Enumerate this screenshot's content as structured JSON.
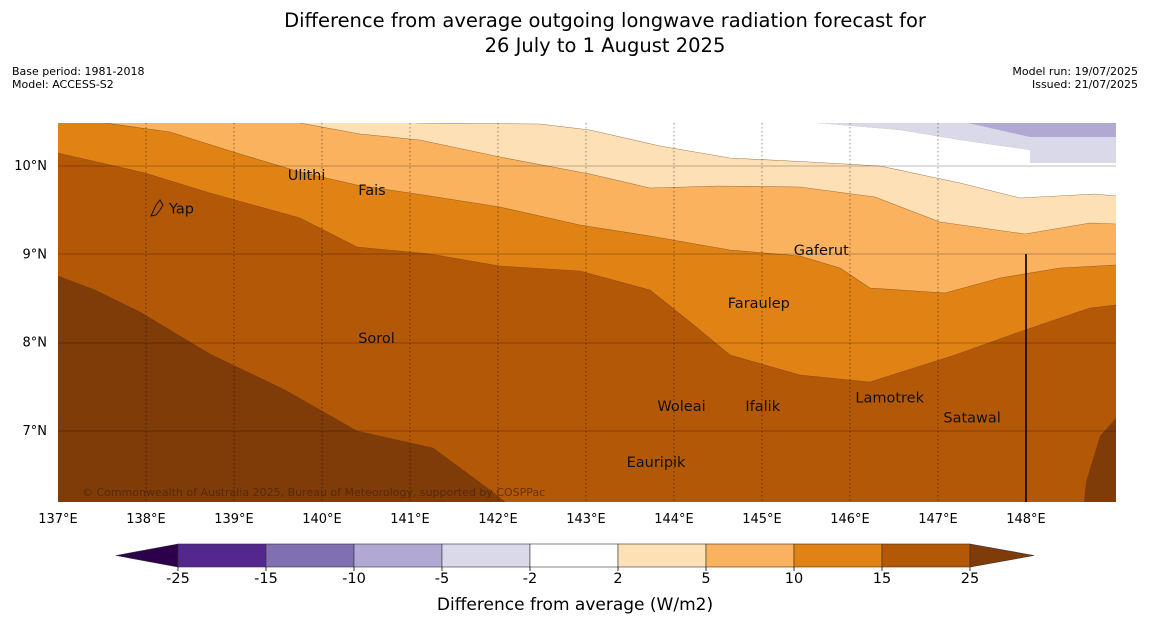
{
  "title_line1": "Difference from average outgoing longwave radiation forecast for",
  "title_line2": "26 July to 1 August 2025",
  "base_period": "Base period: 1981-2018",
  "model": "Model: ACCESS-S2",
  "model_run": "Model run: 19/07/2025",
  "issued": "Issued: 21/07/2025",
  "copyright": "© Commonwealth of Australia 2025, Bureau of Meteorology, supported by COSPPac",
  "map": {
    "lon_labels": [
      "137°E",
      "138°E",
      "139°E",
      "140°E",
      "141°E",
      "142°E",
      "143°E",
      "144°E",
      "145°E",
      "146°E",
      "147°E",
      "148°E"
    ],
    "lat_labels": [
      "10°N",
      "9°N",
      "8°N",
      "7°N"
    ],
    "places": [
      {
        "name": "Yap",
        "lon": 138.25,
        "lat": 9.52
      },
      {
        "name": "Ulithi",
        "lon": 139.6,
        "lat": 9.9
      },
      {
        "name": "Fais",
        "lon": 140.4,
        "lat": 9.73
      },
      {
        "name": "Gaferut",
        "lon": 145.35,
        "lat": 9.05
      },
      {
        "name": "Faraulep",
        "lon": 144.6,
        "lat": 8.45
      },
      {
        "name": "Sorol",
        "lon": 140.4,
        "lat": 8.05
      },
      {
        "name": "Lamotrek",
        "lon": 146.05,
        "lat": 7.38
      },
      {
        "name": "Woleai",
        "lon": 143.8,
        "lat": 7.28
      },
      {
        "name": "Ifalik",
        "lon": 144.8,
        "lat": 7.28
      },
      {
        "name": "Satawal",
        "lon": 147.05,
        "lat": 7.15
      },
      {
        "name": "Eauripik",
        "lon": 143.45,
        "lat": 6.65
      }
    ]
  },
  "colorbar": {
    "title": "Difference from average (W/m2)",
    "ticks": [
      "-25",
      "-15",
      "-10",
      "-5",
      "-2",
      "2",
      "5",
      "10",
      "15",
      "25"
    ],
    "colors": [
      "#54278f",
      "#806fb1",
      "#b1a9d3",
      "#d9d9ea",
      "#ffffff",
      "#fee0b6",
      "#fbb25f",
      "#e08214",
      "#b35806"
    ],
    "extend_low_color": "#2d004b",
    "extend_high_color": "#7f3b08"
  }
}
